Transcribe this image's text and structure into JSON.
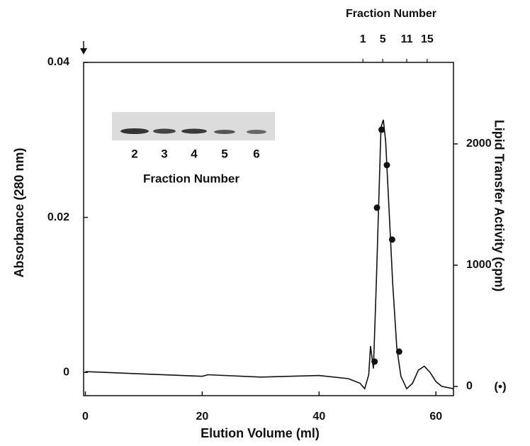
{
  "chart_data": {
    "type": "line",
    "xlabel": "Elution Volume (ml)",
    "ylabel": "Absorbance (280 nm)",
    "y2label": "Lipid Transfer Activity (cpm)",
    "y2symbol": "(•)",
    "x2label": "Fraction Number",
    "xlim": [
      -0.3,
      63
    ],
    "xticks": [
      0,
      20,
      40,
      60
    ],
    "ylim": [
      -0.003,
      0.04
    ],
    "yticks": [
      0,
      0.02,
      0.04
    ],
    "y2lim": [
      -76,
      2672
    ],
    "y2ticks": [
      0,
      1000,
      2000
    ],
    "x2ticks": [
      {
        "value": 47.5,
        "label": "1"
      },
      {
        "value": 50.9,
        "label": "5"
      },
      {
        "value": 55.0,
        "label": "11"
      },
      {
        "value": 58.5,
        "label": "15"
      }
    ],
    "series": [
      {
        "type": "line",
        "color": "#111111",
        "x": [
          0,
          10,
          20,
          21,
          30,
          40,
          45,
          47,
          47.8,
          48.5,
          48.8,
          49.3,
          49.8,
          50.3,
          50.6,
          51.0,
          51.4,
          52.0,
          52.6,
          53.3,
          54,
          55,
          56,
          57,
          58,
          59,
          60,
          61,
          63
        ],
        "values": [
          0.0001,
          -0.0002,
          -0.0005,
          -0.0003,
          -0.0006,
          -0.0004,
          -0.0008,
          -0.0014,
          -0.0021,
          -0.0003,
          0.0034,
          0.0005,
          0.0115,
          0.0243,
          0.0316,
          0.0326,
          0.0298,
          0.0206,
          0.0115,
          0.0032,
          -0.0005,
          -0.0021,
          -0.0014,
          0.0003,
          0.0008,
          0,
          -0.0012,
          -0.0018,
          -0.0021
        ]
      },
      {
        "type": "scatter",
        "axis": "y2",
        "color": "#111111",
        "x": [
          49.5,
          49.9,
          50.7,
          51.6,
          52.5,
          53.7
        ],
        "values": [
          205,
          1474,
          2117,
          1825,
          1211,
          287
        ]
      }
    ],
    "inset": {
      "lanes": [
        "2",
        "3",
        "4",
        "5",
        "6"
      ],
      "label": "Fraction Number"
    }
  }
}
